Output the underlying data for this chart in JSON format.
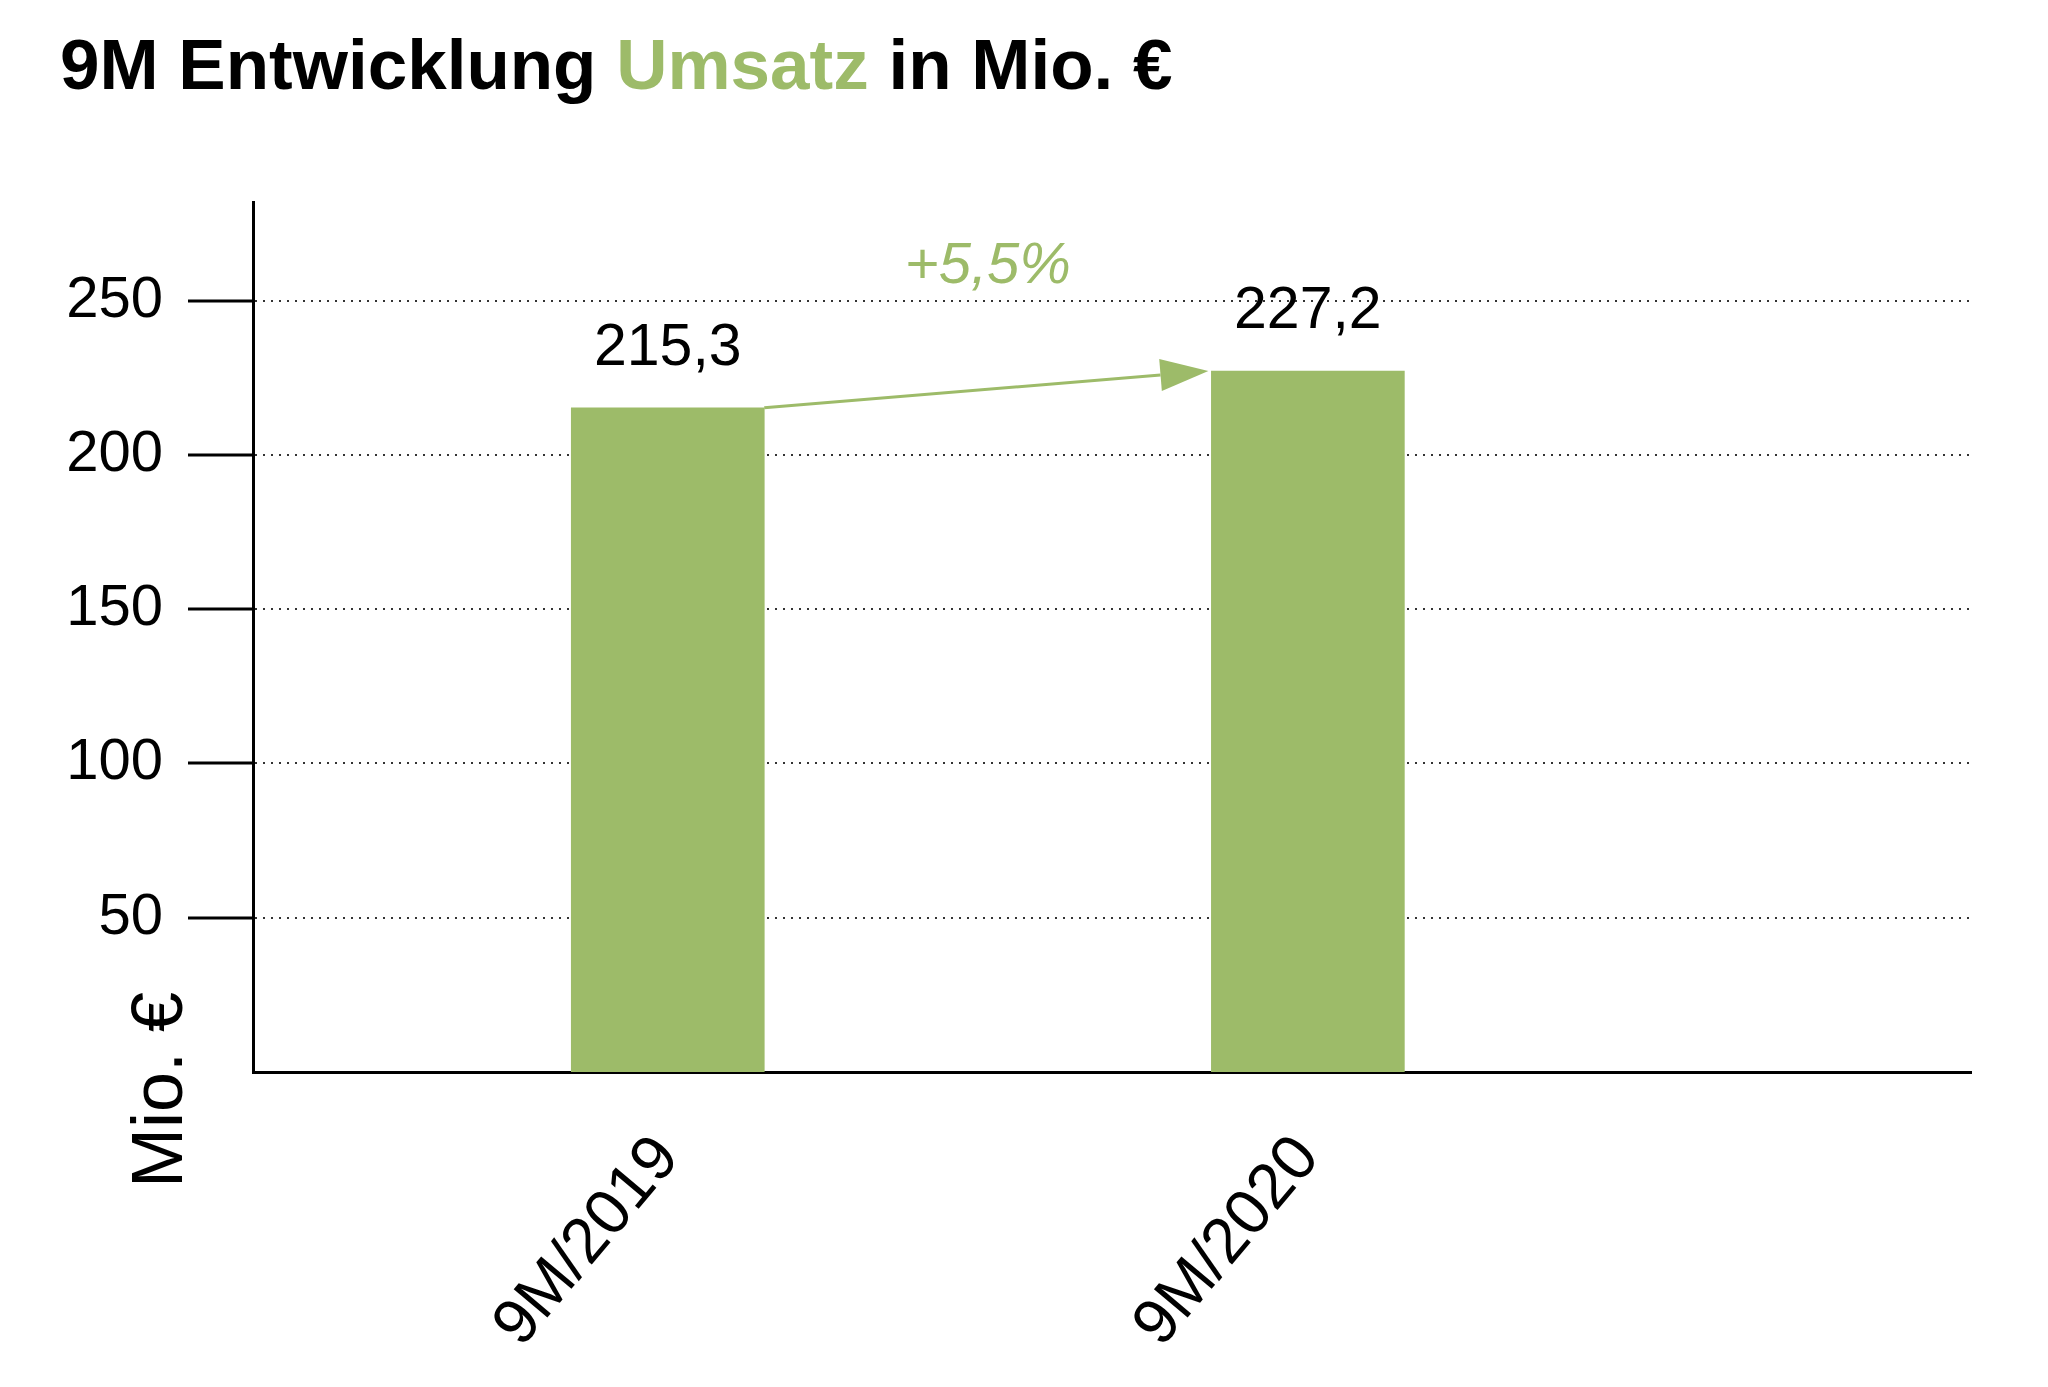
{
  "chart_data": {
    "type": "bar",
    "title": "9M Entwicklung Umsatz in Mio. €",
    "ylabel": "Mio. €",
    "categories": [
      "9M/2019",
      "9M/2020"
    ],
    "values": [
      215.3,
      227.2
    ],
    "value_labels": [
      "215,3",
      "227,2"
    ],
    "color": "#9dbb69",
    "ylim": [
      0,
      282
    ],
    "yticks": [
      50,
      100,
      150,
      200,
      250
    ],
    "grid": "y",
    "annotations": [
      "+5,5%"
    ]
  }
}
